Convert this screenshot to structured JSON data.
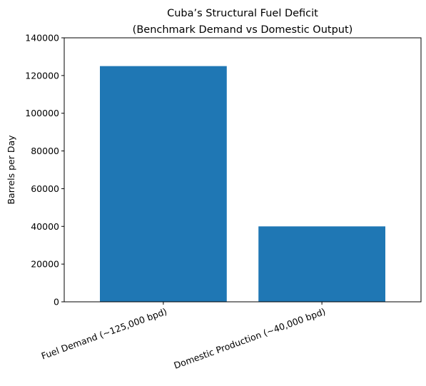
{
  "chart_data": {
    "type": "bar",
    "title_lines": [
      "Cuba’s Structural Fuel Deficit",
      "(Benchmark Demand vs Domestic Output)"
    ],
    "xlabel": "",
    "ylabel": "Barrels per Day",
    "categories": [
      "Fuel Demand (~125,000 bpd)",
      "Domestic Production (~40,000 bpd)"
    ],
    "values": [
      125000,
      40000
    ],
    "ylim": [
      0,
      140000
    ],
    "yticks": [
      0,
      20000,
      40000,
      60000,
      80000,
      100000,
      120000,
      140000
    ],
    "bar_color": "#1f77b4",
    "grid": false,
    "legend": "none"
  }
}
